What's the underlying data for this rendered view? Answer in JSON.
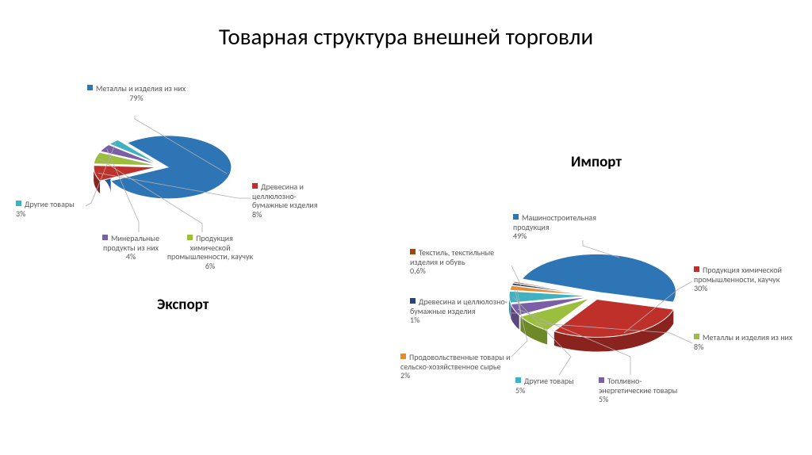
{
  "title": "Товарная структура внешней торговли",
  "title_fontsize": 29,
  "background_color": "#ffffff",
  "subtitles": {
    "export": "Экспорт",
    "import": "Импорт"
  },
  "export_chart": {
    "type": "pie-3d",
    "slices": [
      {
        "label": "Металлы и изделия из них",
        "value": 79,
        "display": "79%",
        "color": "#2e75b6",
        "side": "#1f5a94"
      },
      {
        "label": "Древесина и целлюлозно-бумажные изделия",
        "value": 8,
        "display": "8%",
        "color": "#c0302b",
        "side": "#8a221e"
      },
      {
        "label": "Продукция химической промышленности, каучук",
        "value": 6,
        "display": "6%",
        "color": "#9bbe3c",
        "side": "#6e8a28"
      },
      {
        "label": "Минеральные продукты из них",
        "value": 4,
        "display": "4%",
        "color": "#7a5fa6",
        "side": "#5c477d"
      },
      {
        "label": "Другие товары",
        "value": 3,
        "display": "3%",
        "color": "#3fb1c0",
        "side": "#2d8a96"
      }
    ],
    "label_fontsize": 10,
    "label_color": "#595959",
    "marker_size": 7
  },
  "import_chart": {
    "type": "pie-3d",
    "slices": [
      {
        "label": "Машиностроительная продукция",
        "value": 49,
        "display": "49%",
        "color": "#2e75b6",
        "side": "#1f5a94"
      },
      {
        "label": "Продукция химической промышленности, каучук",
        "value": 30,
        "display": "30%",
        "color": "#c0302b",
        "side": "#8a221e"
      },
      {
        "label": "Металлы и изделия из них",
        "value": 8,
        "display": "8%",
        "color": "#9bbe3c",
        "side": "#6e8a28"
      },
      {
        "label": "Топливно-энергетические товары",
        "value": 5,
        "display": "5%",
        "color": "#7a5fa6",
        "side": "#5c477d"
      },
      {
        "label": "Другие товары",
        "value": 5,
        "display": "5%",
        "color": "#3fb1c0",
        "side": "#2d8a96"
      },
      {
        "label": "Продовольственные товары и сельско-хозяйственное сырье",
        "value": 2,
        "display": "2%",
        "color": "#e68a2e",
        "side": "#b56a20"
      },
      {
        "label": "Древесина и целлюлозно-бумажные изделия",
        "value": 1,
        "display": "1%",
        "color": "#264478",
        "side": "#1a3055"
      },
      {
        "label": "Текстиль, текстильные изделия и обувь",
        "value": 0.6,
        "display": "0,6%",
        "color": "#9e480e",
        "side": "#6e3209"
      }
    ],
    "label_fontsize": 10,
    "label_color": "#595959",
    "marker_size": 7
  }
}
